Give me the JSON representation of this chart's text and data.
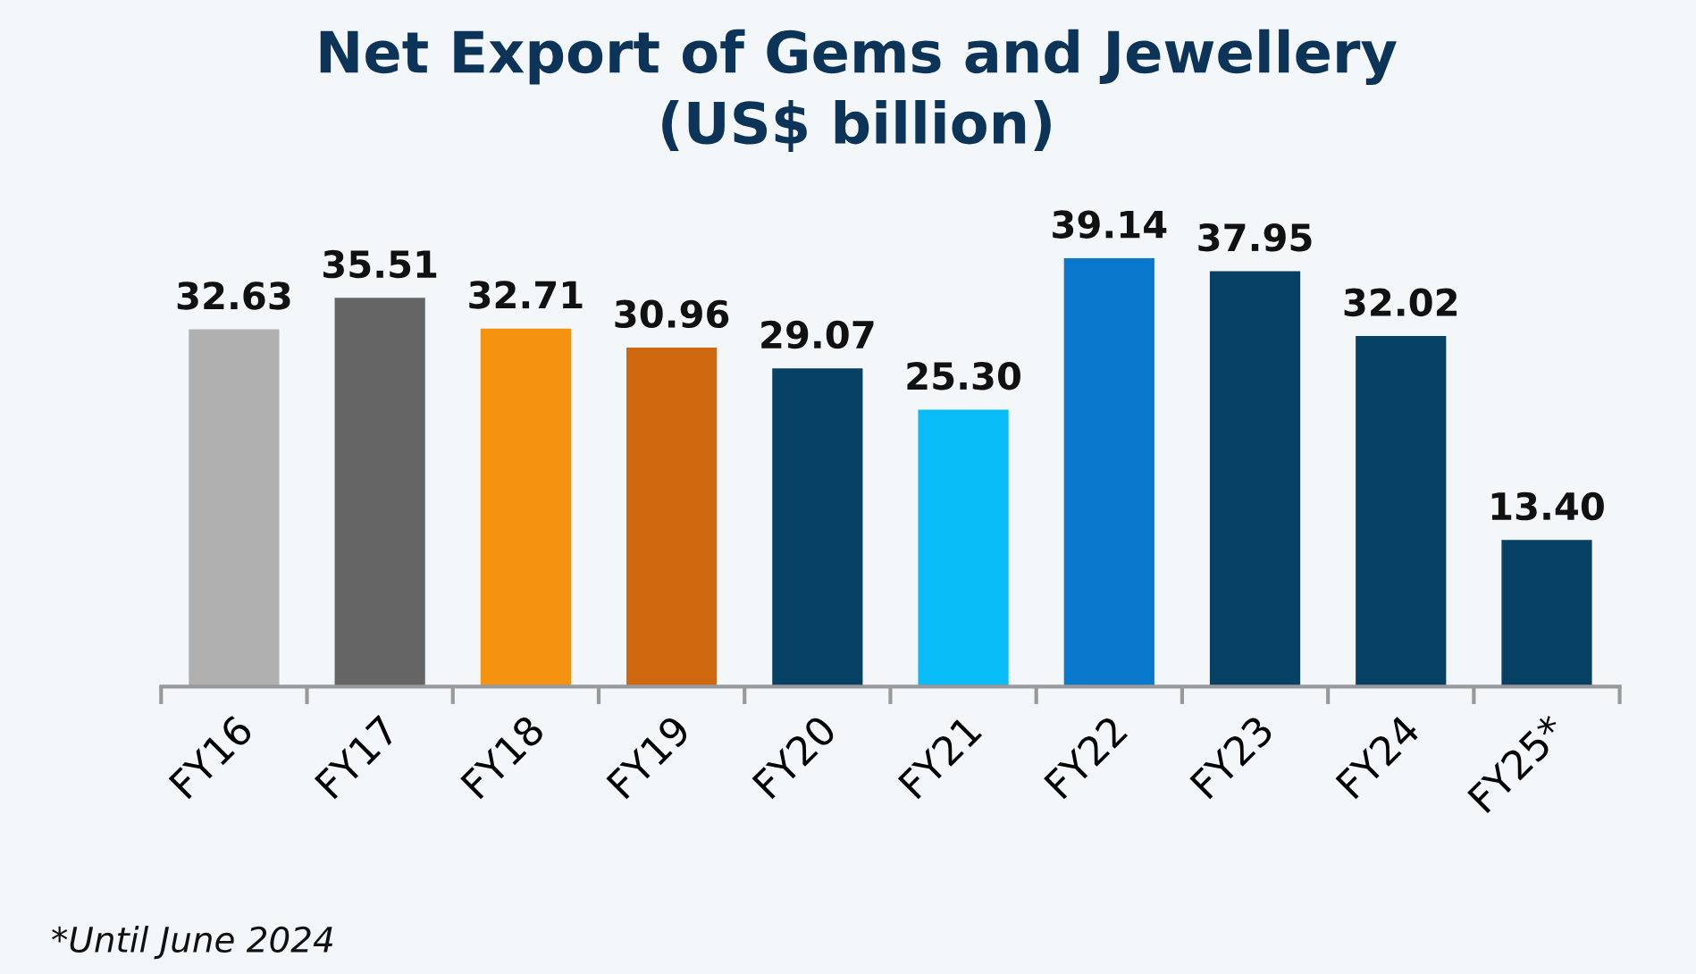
{
  "chart_data": {
    "type": "bar",
    "title": "Net Export of Gems and Jewellery\n(US$ billion)",
    "categories": [
      "FY16",
      "FY17",
      "FY18",
      "FY19",
      "FY20",
      "FY21",
      "FY22",
      "FY23",
      "FY24",
      "FY25*"
    ],
    "values": [
      32.63,
      35.51,
      32.71,
      30.96,
      29.07,
      25.3,
      39.14,
      37.95,
      32.02,
      13.4
    ],
    "value_labels": [
      "32.63",
      "35.51",
      "32.71",
      "30.96",
      "29.07",
      "25.30",
      "39.14",
      "37.95",
      "32.02",
      "13.40"
    ],
    "colors": [
      "#b0b0b0",
      "#656565",
      "#f59310",
      "#d0680f",
      "#074065",
      "#08bcf7",
      "#0877cc",
      "#074065",
      "#074065",
      "#074065"
    ],
    "annotations": [
      "*Until June 2024"
    ],
    "grid": false
  }
}
